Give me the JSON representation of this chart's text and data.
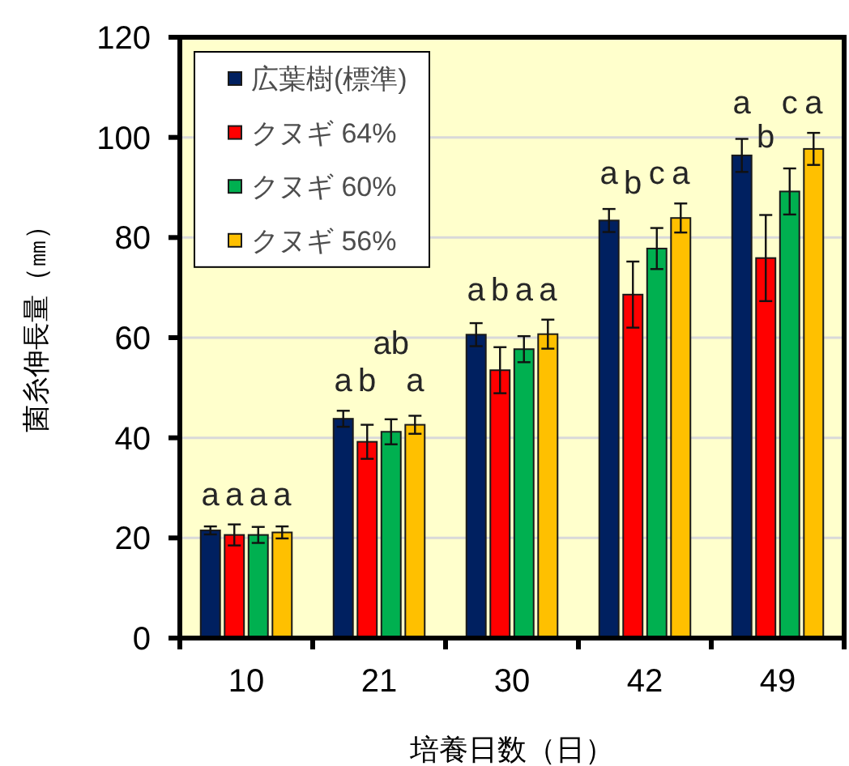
{
  "chart_data": {
    "type": "bar",
    "xlabel": "培養日数（日）",
    "ylabel": "菌糸伸長量（㎜）",
    "categories": [
      "10",
      "21",
      "30",
      "42",
      "49"
    ],
    "ylim": [
      0,
      120
    ],
    "yticks": [
      0,
      20,
      40,
      60,
      80,
      100,
      120
    ],
    "grid": "y",
    "legend": "top left",
    "series": [
      {
        "name": "広葉樹(標準)",
        "color": "#002060",
        "values": [
          21.5,
          43.8,
          60.6,
          83.4,
          96.4
        ],
        "errors": [
          0.8,
          1.6,
          2.3,
          2.3,
          3.3
        ],
        "value_labels": [
          "a",
          "a",
          "a",
          "a",
          "a"
        ]
      },
      {
        "name": "クヌギ 64%",
        "color": "#ff0000",
        "values": [
          20.6,
          39.2,
          53.5,
          68.6,
          75.9
        ],
        "errors": [
          2.1,
          3.4,
          4.6,
          6.6,
          8.6
        ],
        "value_labels": [
          "a",
          "b",
          "b",
          "b",
          "b"
        ]
      },
      {
        "name": "クヌギ 60%",
        "color": "#00b050",
        "values": [
          20.6,
          41.2,
          57.7,
          77.8,
          89.2
        ],
        "errors": [
          1.6,
          2.5,
          2.6,
          4.1,
          4.6
        ],
        "value_labels": [
          "a",
          "ab",
          "a",
          "c",
          "c"
        ]
      },
      {
        "name": "クヌギ 56%",
        "color": "#ffc000",
        "values": [
          21.1,
          42.6,
          60.7,
          83.9,
          97.7
        ],
        "errors": [
          1.2,
          1.8,
          2.9,
          2.9,
          3.2
        ],
        "value_labels": [
          "a",
          "a",
          "a",
          "a",
          "a"
        ]
      }
    ]
  }
}
